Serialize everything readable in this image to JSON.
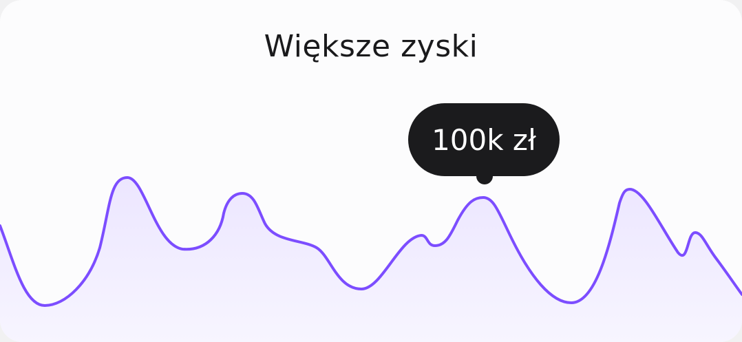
{
  "card": {
    "title": "Większe zyski",
    "tooltip": "100k zł"
  },
  "colors": {
    "line": "#7c4dff",
    "fill": "#ede8ff",
    "tooltip_bg": "#1b1b1d"
  }
}
